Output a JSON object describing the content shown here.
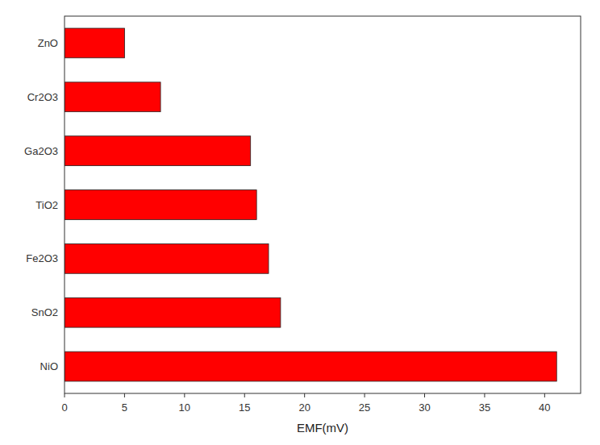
{
  "chart_data": {
    "type": "bar",
    "orientation": "horizontal",
    "categories": [
      "NiO",
      "SnO2",
      "Fe2O3",
      "TiO2",
      "Ga2O3",
      "Cr2O3",
      "ZnO"
    ],
    "values": [
      41,
      18,
      17,
      16,
      15.5,
      8,
      5
    ],
    "color": "#ff0000",
    "xlabel": "EMF(mV)",
    "xlim": [
      0,
      43
    ],
    "xticks": [
      0,
      5,
      10,
      15,
      20,
      25,
      30,
      35,
      40
    ],
    "grid": false
  }
}
